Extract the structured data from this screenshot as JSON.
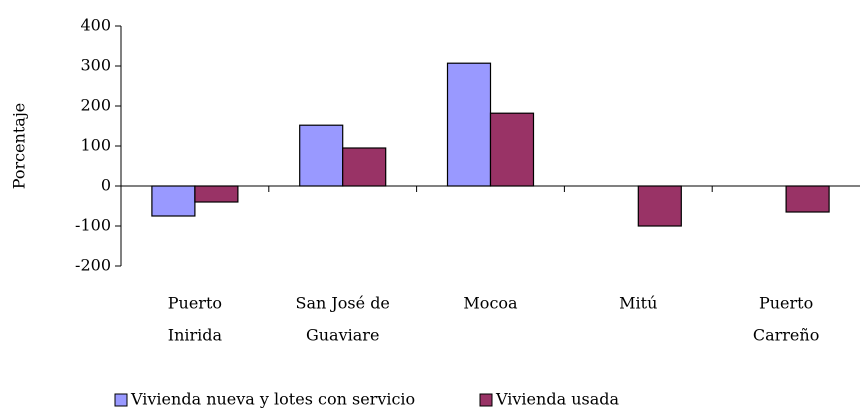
{
  "chart_data": {
    "type": "bar",
    "y_label": "Porcentaje",
    "categories": [
      [
        "Puerto",
        "Inirida"
      ],
      [
        "San José de",
        "Guaviare"
      ],
      [
        "Mocoa"
      ],
      [
        "Mitú"
      ],
      [
        "Puerto",
        "Carreño"
      ]
    ],
    "series": [
      {
        "name": "Vivienda nueva y lotes  con servicio",
        "color": "#9999ff",
        "values": [
          -75,
          152,
          307,
          null,
          null
        ]
      },
      {
        "name": "Vivienda usada",
        "color": "#993366",
        "values": [
          -40,
          95,
          182,
          -100,
          -65
        ]
      }
    ],
    "ylim": [
      -200,
      400
    ],
    "yticks": [
      -200,
      -100,
      0,
      100,
      200,
      300,
      400
    ],
    "legend": "bottom"
  }
}
